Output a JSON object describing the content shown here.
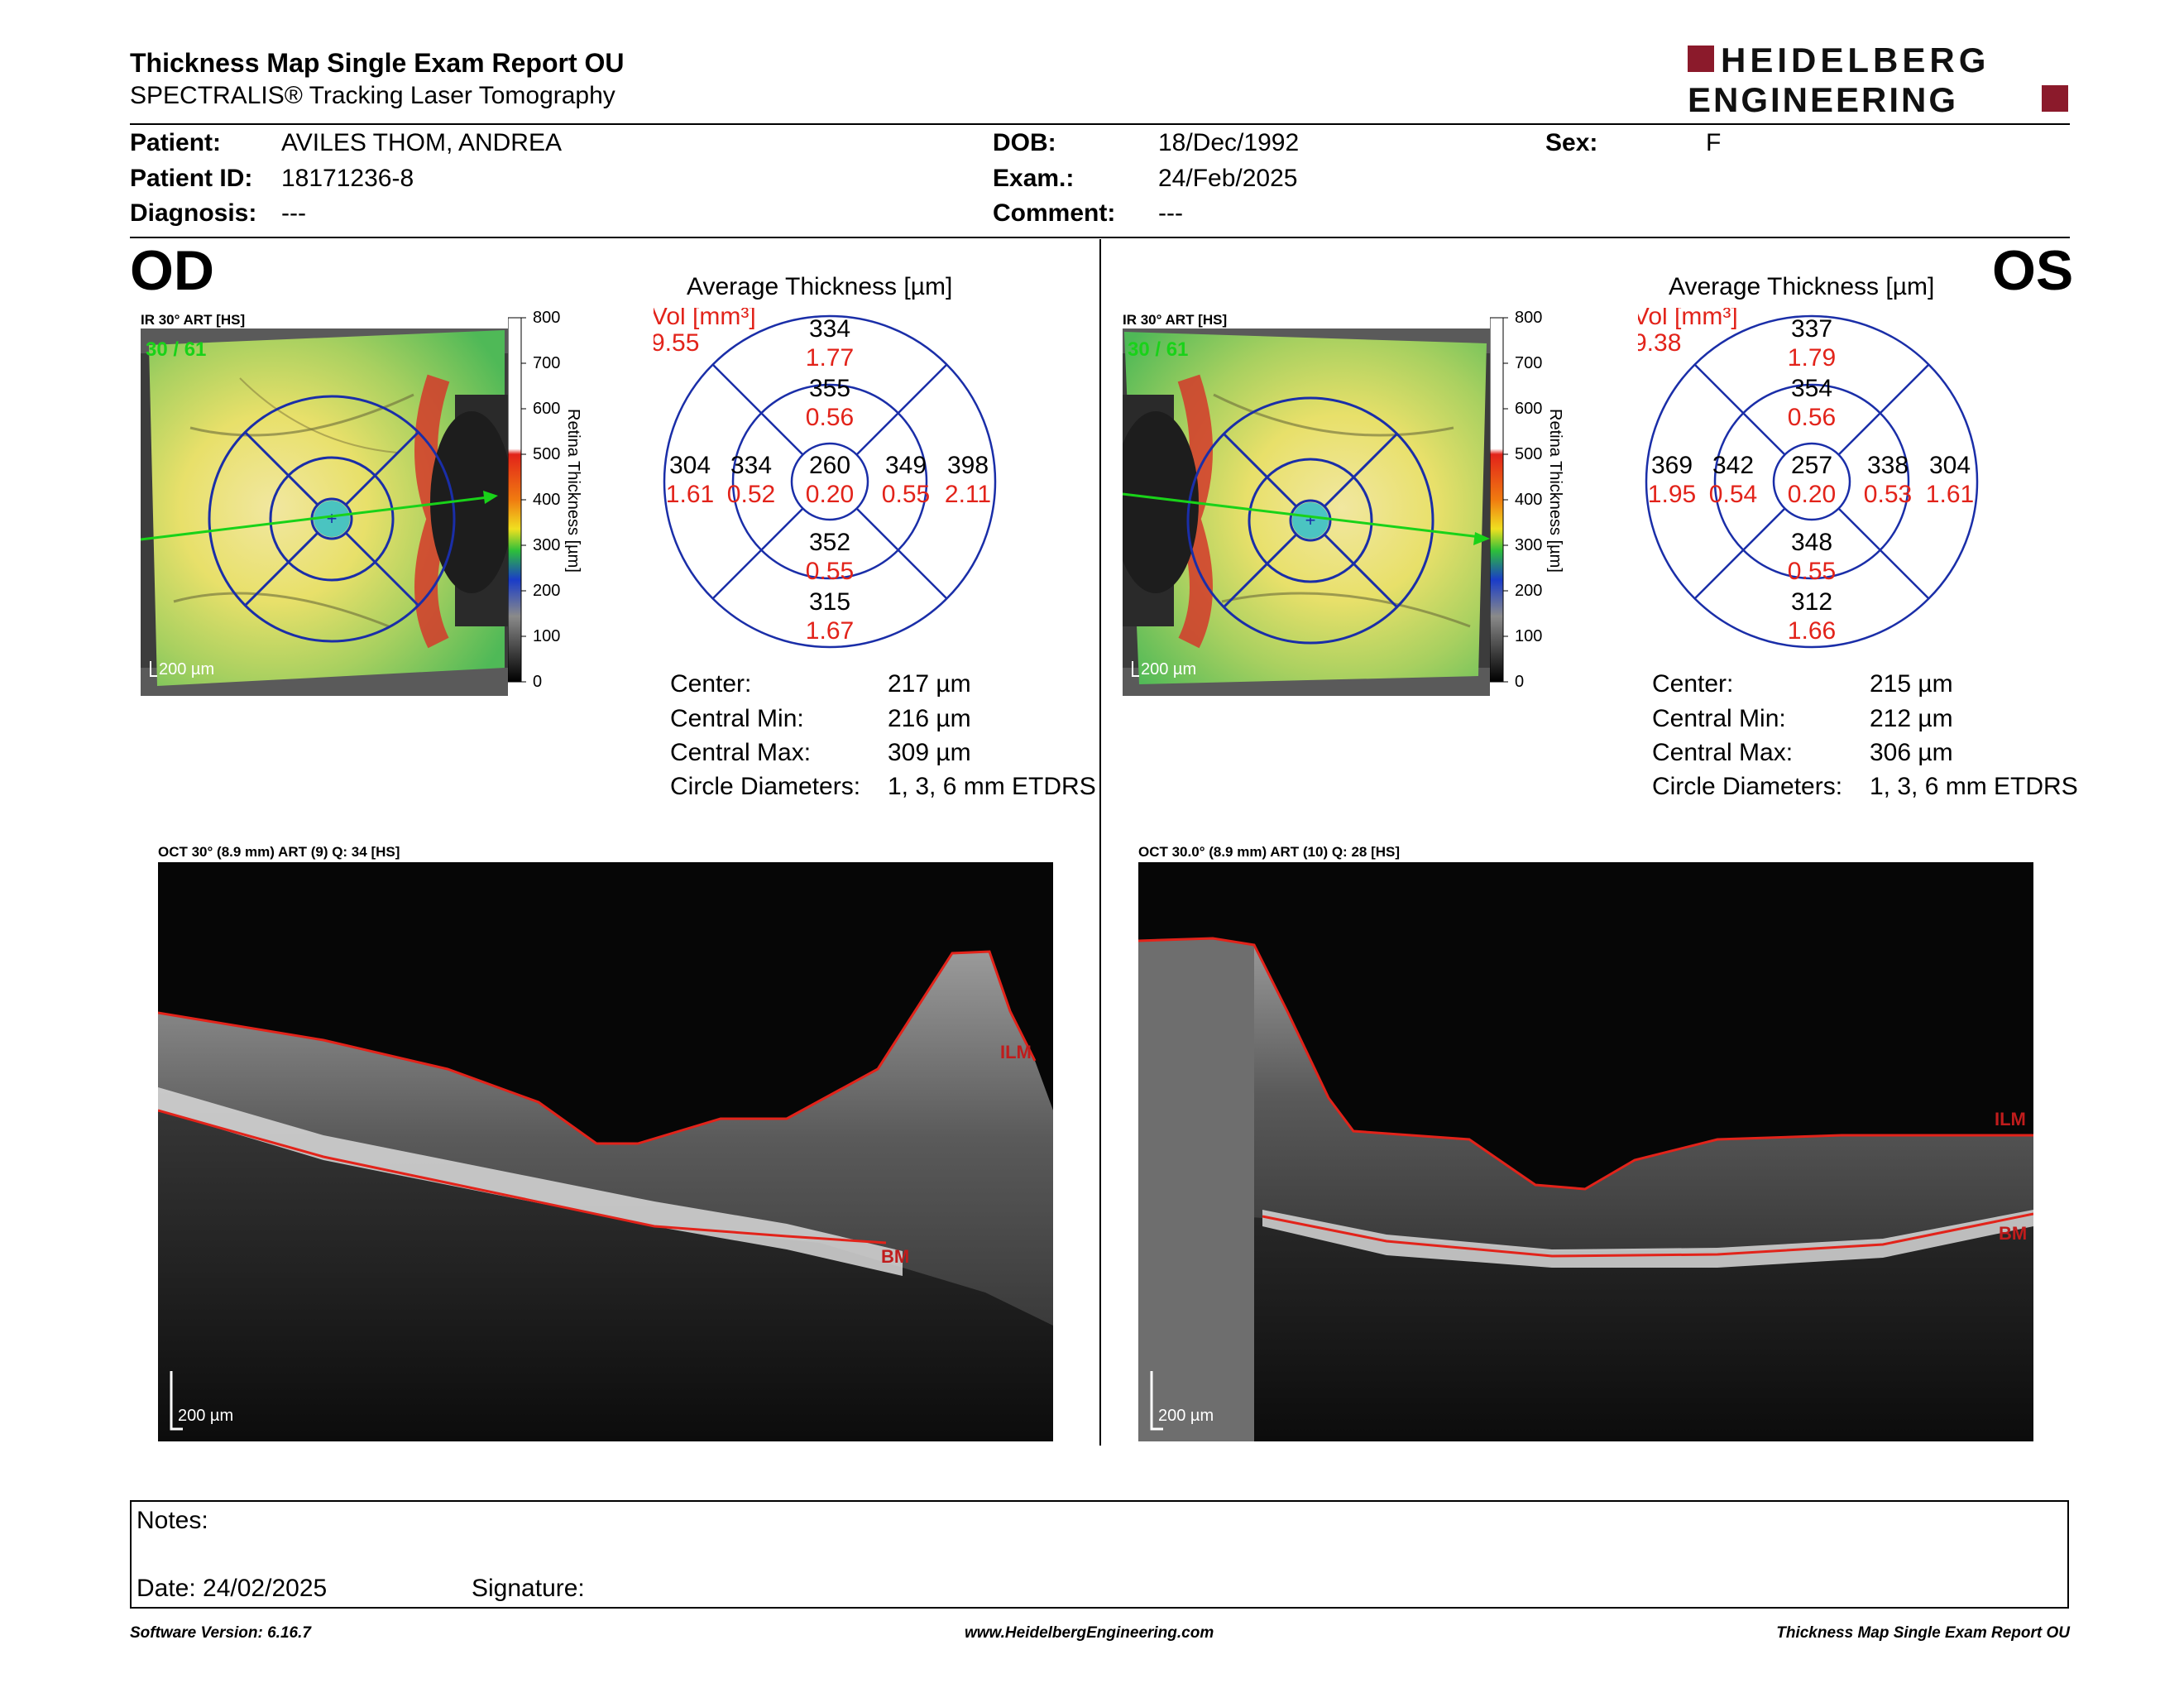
{
  "header": {
    "title": "Thickness Map Single Exam Report OU",
    "subtitle": "SPECTRALIS® Tracking Laser Tomography",
    "logo_line1": "HEIDELBERG",
    "logo_line2": "ENGINEERING",
    "logo_color": "#8b1a2b"
  },
  "patient": {
    "patient_label": "Patient:",
    "patient_value": "AVILES THOM, ANDREA",
    "id_label": "Patient ID:",
    "id_value": "18171236-8",
    "diag_label": "Diagnosis:",
    "diag_value": "---",
    "dob_label": "DOB:",
    "dob_value": "18/Dec/1992",
    "exam_label": "Exam.:",
    "exam_value": "24/Feb/2025",
    "comment_label": "Comment:",
    "comment_value": "---",
    "sex_label": "Sex:",
    "sex_value": "F"
  },
  "scale": {
    "ticks": [
      "800",
      "700",
      "600",
      "500",
      "400",
      "300",
      "200",
      "100",
      "0"
    ],
    "label": "Retina  Thickness [µm]"
  },
  "od": {
    "eye": "OD",
    "ir_label": "IR 30° ART [HS]",
    "frame_counter": "30 / 61",
    "scale_bar": "200 µm",
    "avg_title": "Average Thickness [µm]",
    "vol_label": "Vol [mm³]",
    "vol_value": "9.55",
    "etdrs": {
      "center": {
        "t": "260",
        "v": "0.20"
      },
      "inner_sup": {
        "t": "355",
        "v": "0.56"
      },
      "inner_inf": {
        "t": "352",
        "v": "0.55"
      },
      "inner_left": {
        "t": "334",
        "v": "0.52"
      },
      "inner_right": {
        "t": "349",
        "v": "0.55"
      },
      "outer_sup": {
        "t": "334",
        "v": "1.77"
      },
      "outer_inf": {
        "t": "315",
        "v": "1.67"
      },
      "outer_left": {
        "t": "304",
        "v": "1.61"
      },
      "outer_right": {
        "t": "398",
        "v": "2.11"
      }
    },
    "stats": [
      {
        "label": "Center:",
        "value": "217 µm"
      },
      {
        "label": "Central Min:",
        "value": "216 µm"
      },
      {
        "label": "Central Max:",
        "value": "309 µm"
      },
      {
        "label": "Circle Diameters:",
        "value": "1, 3, 6 mm ETDRS"
      }
    ],
    "oct_label": "OCT 30° (8.9 mm) ART (9) Q: 34 [HS]",
    "oct_scale": "200 µm",
    "ilm": "ILM",
    "bm": "BM"
  },
  "os": {
    "eye": "OS",
    "ir_label": "IR 30° ART [HS]",
    "frame_counter": "30 / 61",
    "scale_bar": "200 µm",
    "avg_title": "Average Thickness [µm]",
    "vol_label": "Vol [mm³]",
    "vol_value": "9.38",
    "etdrs": {
      "center": {
        "t": "257",
        "v": "0.20"
      },
      "inner_sup": {
        "t": "354",
        "v": "0.56"
      },
      "inner_inf": {
        "t": "348",
        "v": "0.55"
      },
      "inner_left": {
        "t": "342",
        "v": "0.54"
      },
      "inner_right": {
        "t": "338",
        "v": "0.53"
      },
      "outer_sup": {
        "t": "337",
        "v": "1.79"
      },
      "outer_inf": {
        "t": "312",
        "v": "1.66"
      },
      "outer_left": {
        "t": "369",
        "v": "1.95"
      },
      "outer_right": {
        "t": "304",
        "v": "1.61"
      }
    },
    "stats": [
      {
        "label": "Center:",
        "value": "215 µm"
      },
      {
        "label": "Central Min:",
        "value": "212 µm"
      },
      {
        "label": "Central Max:",
        "value": "306 µm"
      },
      {
        "label": "Circle Diameters:",
        "value": "1, 3, 6 mm ETDRS"
      }
    ],
    "oct_label": "OCT 30.0° (8.9 mm) ART (10) Q: 28 [HS]",
    "oct_scale": "200 µm",
    "ilm": "ILM",
    "bm": "BM"
  },
  "notes": {
    "notes_label": "Notes:",
    "date_label": "Date: 24/02/2025",
    "signature_label": "Signature:"
  },
  "footer": {
    "version": "Software Version: 6.16.7",
    "url": "www.HeidelbergEngineering.com",
    "report": "Thickness Map Single Exam Report OU"
  }
}
